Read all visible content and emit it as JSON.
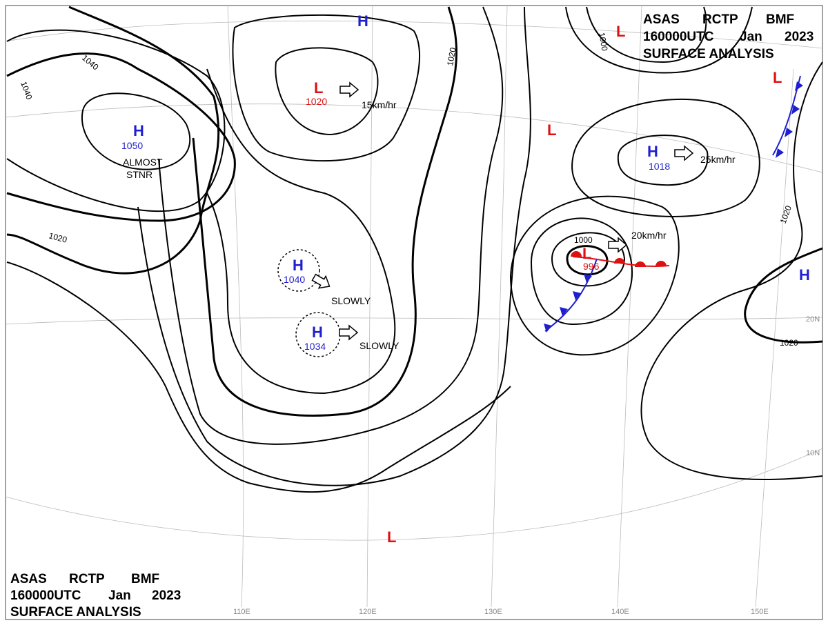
{
  "header": {
    "agency": "ASAS",
    "station": "RCTP",
    "office": "BMF",
    "time": "160000UTC",
    "month": "Jan",
    "year": "2023",
    "product": "SURFACE ANALYSIS"
  },
  "pressure_systems": [
    {
      "symbol": "H",
      "pressure": "1050",
      "movement": [
        "ALMOST",
        "STNR"
      ]
    },
    {
      "symbol": "L",
      "pressure": "1020",
      "movement": [
        "15km/hr"
      ]
    },
    {
      "symbol": "H"
    },
    {
      "symbol": "H",
      "pressure": "1040",
      "movement": [
        "SLOWLY"
      ]
    },
    {
      "symbol": "H",
      "pressure": "1034",
      "movement": [
        "SLOWLY"
      ]
    },
    {
      "symbol": "L",
      "pressure": "996",
      "movement": [
        "20km/hr"
      ]
    },
    {
      "symbol": "H",
      "pressure": "1018",
      "movement": [
        "25km/hr"
      ]
    },
    {
      "symbol": "L"
    },
    {
      "symbol": "L"
    },
    {
      "symbol": "L"
    },
    {
      "symbol": "H"
    },
    {
      "symbol": "L"
    }
  ],
  "isobar_labels": [
    "1040",
    "1040",
    "1020",
    "1020",
    "1000",
    "1000",
    "1020",
    "1020"
  ],
  "grid_labels": [
    "110E",
    "120E",
    "130E",
    "140E",
    "150E",
    "10N",
    "20N"
  ]
}
